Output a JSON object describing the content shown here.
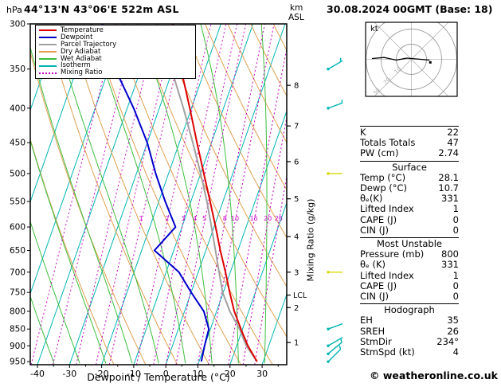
{
  "header": {
    "pressure_unit": "hPa",
    "station_title": "44°13'N 43°06'E 522m ASL",
    "datetime_title": "30.08.2024 00GMT (Base: 18)"
  },
  "legend": {
    "items": [
      {
        "label": "Temperature",
        "color": "#dd0000",
        "style": "solid"
      },
      {
        "label": "Dewpoint",
        "color": "#0000cc",
        "style": "solid"
      },
      {
        "label": "Parcel Trajectory",
        "color": "#a0a0a0",
        "style": "solid"
      },
      {
        "label": "Dry Adiabat",
        "color": "#df9f4f",
        "style": "solid"
      },
      {
        "label": "Wet Adiabat",
        "color": "#3dbd3d",
        "style": "solid"
      },
      {
        "label": "Isotherm",
        "color": "#00b4b4",
        "style": "solid"
      },
      {
        "label": "Mixing Ratio",
        "color": "#c800c8",
        "style": "dotted"
      }
    ]
  },
  "axes": {
    "pressure_ticks": [
      300,
      350,
      400,
      450,
      500,
      550,
      600,
      650,
      700,
      750,
      800,
      850,
      900,
      950
    ],
    "temp_ticks": [
      -40,
      -30,
      -20,
      -10,
      0,
      10,
      20,
      30
    ],
    "x_axis_label": "Dewpoint / Temperature (°C)",
    "km_unit_line1": "km",
    "km_unit_line2": "ASL",
    "km_ticks": [
      8,
      7,
      6,
      5,
      4,
      3,
      2,
      1
    ],
    "km_tick_pressures": [
      370,
      425,
      480,
      545,
      620,
      700,
      790,
      890
    ],
    "mixing_ratio_axis_label": "Mixing Ratio (g/kg)",
    "lcl_label": "LCL"
  },
  "chart_data": {
    "type": "line",
    "variant": "skew-t-log-p",
    "title": "44°13'N 43°06'E 522m ASL",
    "valid": "30.08.2024 00GMT (Base: 18)",
    "xlabel": "Dewpoint / Temperature (°C)",
    "ylabel": "hPa",
    "x_range_c": [
      -40,
      37
    ],
    "pressure_range_hpa": [
      300,
      960
    ],
    "pressure_levels_hpa": [
      950,
      900,
      850,
      800,
      750,
      700,
      650,
      600,
      550,
      500,
      450,
      400,
      350,
      300
    ],
    "series": [
      {
        "name": "Temperature",
        "color": "#dd0000",
        "values_c": [
          28.1,
          23.5,
          19.5,
          15.5,
          12.0,
          8.5,
          4.5,
          0.5,
          -4.0,
          -9.0,
          -14.5,
          -20.5,
          -27.5,
          -35.0
        ]
      },
      {
        "name": "Dewpoint",
        "color": "#0000cc",
        "values_c": [
          10.7,
          10.0,
          9.5,
          6.0,
          0.0,
          -6.0,
          -16.0,
          -12.0,
          -18.0,
          -24.0,
          -30.0,
          -38.0,
          -48.0,
          -57.0
        ]
      },
      {
        "name": "Parcel Trajectory",
        "color": "#a0a0a0",
        "values_c": [
          28.1,
          23.0,
          19.1,
          14.1,
          9.8,
          6.5,
          3.0,
          -0.8,
          -5.0,
          -10.0,
          -15.8,
          -22.5,
          -30.5,
          -40.0
        ]
      }
    ],
    "lcl_pressure_hpa": 757,
    "mixing_ratio_lines_gkg": [
      0.1,
      0.2,
      0.4,
      0.7,
      1,
      2,
      3,
      4,
      5,
      8,
      10,
      15,
      20,
      25
    ],
    "mixing_ratio_label_values": [
      1,
      2,
      3,
      4,
      5,
      8,
      10,
      15,
      20,
      25
    ],
    "isotherm_step_c": 10,
    "dry_adiabat_thetas_k": [
      260,
      270,
      280,
      290,
      300,
      310,
      320,
      330,
      340,
      350,
      360,
      370,
      380,
      390,
      400,
      410,
      420,
      430,
      440
    ],
    "wet_adiabat_start_temps_c": [
      -40,
      -32,
      -24,
      -16,
      -8,
      0,
      8,
      16,
      24,
      32
    ],
    "wind_barbs": [
      {
        "pressure_hpa": 350,
        "speed_kt": 15,
        "dir_deg": 60,
        "color": "#00b4b4"
      },
      {
        "pressure_hpa": 400,
        "speed_kt": 15,
        "dir_deg": 70,
        "color": "#00b4b4"
      },
      {
        "pressure_hpa": 500,
        "speed_kt": 10,
        "dir_deg": 90,
        "color": "#d8d800"
      },
      {
        "pressure_hpa": 700,
        "speed_kt": 10,
        "dir_deg": 90,
        "color": "#d8d800"
      },
      {
        "pressure_hpa": 850,
        "speed_kt": 5,
        "dir_deg": 70,
        "color": "#00b4b4"
      },
      {
        "pressure_hpa": 900,
        "speed_kt": 5,
        "dir_deg": 60,
        "color": "#00b4b4"
      },
      {
        "pressure_hpa": 925,
        "speed_kt": 5,
        "dir_deg": 50,
        "color": "#00b4b4"
      },
      {
        "pressure_hpa": 950,
        "speed_kt": 5,
        "dir_deg": 45,
        "color": "#00b4b4"
      }
    ]
  },
  "hodograph": {
    "unit_label": "kt",
    "rings_kt": [
      10,
      20,
      30
    ],
    "trace_kt": [
      [
        -26,
        0.5
      ],
      [
        -18,
        1.2
      ],
      [
        -10,
        -0.5
      ],
      [
        -3,
        0.8
      ],
      [
        4,
        0.2
      ],
      [
        12,
        -0.5
      ]
    ],
    "marker_kt": [
      12.5,
      -2
    ]
  },
  "table": {
    "sections": [
      {
        "title": "",
        "rows": [
          {
            "label": "K",
            "value": "22"
          },
          {
            "label": "Totals Totals",
            "value": "47"
          },
          {
            "label": "PW (cm)",
            "value": "2.74"
          }
        ]
      },
      {
        "title": "Surface",
        "rows": [
          {
            "label": "Temp (°C)",
            "value": "28.1"
          },
          {
            "label": "Dewp (°C)",
            "value": "10.7"
          },
          {
            "label": "θₑ(K)",
            "value": "331"
          },
          {
            "label": "Lifted Index",
            "value": "1"
          },
          {
            "label": "CAPE (J)",
            "value": "0"
          },
          {
            "label": "CIN (J)",
            "value": "0"
          }
        ]
      },
      {
        "title": "Most Unstable",
        "rows": [
          {
            "label": "Pressure (mb)",
            "value": "800"
          },
          {
            "label": "θₑ (K)",
            "value": "331"
          },
          {
            "label": "Lifted Index",
            "value": "1"
          },
          {
            "label": "CAPE (J)",
            "value": "0"
          },
          {
            "label": "CIN (J)",
            "value": "0"
          }
        ]
      },
      {
        "title": "Hodograph",
        "rows": [
          {
            "label": "EH",
            "value": "35"
          },
          {
            "label": "SREH",
            "value": "26"
          },
          {
            "label": "StmDir",
            "value": "234°"
          },
          {
            "label": "StmSpd (kt)",
            "value": "4"
          }
        ]
      }
    ]
  },
  "footer": {
    "copyright": "© weatheronline.co.uk"
  }
}
